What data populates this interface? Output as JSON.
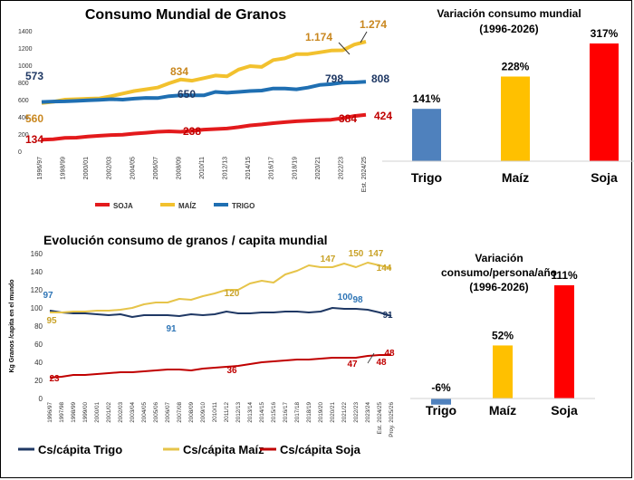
{
  "chart_data": [
    {
      "type": "line",
      "title": "Consumo Mundial de Granos",
      "x": [
        "1996/97",
        "1997/98",
        "1998/99",
        "1999/00",
        "2000/01",
        "2001/02",
        "2002/03",
        "2003/04",
        "2004/05",
        "2005/06",
        "2006/07",
        "2007/08",
        "2008/09",
        "2009/10",
        "2010/11",
        "2011/12",
        "2012/13",
        "2013/14",
        "2014/15",
        "2015/16",
        "2016/17",
        "2017/18",
        "2018/19",
        "2019/20",
        "2020/21",
        "2021/22",
        "2022/23",
        "2023/24",
        "Est. 2024/25"
      ],
      "x_tick_labels": [
        "1996/97",
        "1998/99",
        "2000/01",
        "2002/03",
        "2004/05",
        "2006/07",
        "2008/09",
        "2010/11",
        "2012/13",
        "2014/15",
        "2016/17",
        "2018/19",
        "2020/21",
        "2022/23",
        "Est. 2024/25"
      ],
      "ylim": [
        0,
        1400
      ],
      "y_ticks": [
        "0",
        "200",
        "400",
        "600",
        "800",
        "1000",
        "1200",
        "1400"
      ],
      "series": [
        {
          "name": "SOJA",
          "color": "#e31a1c",
          "values": [
            134,
            140,
            155,
            158,
            170,
            180,
            188,
            192,
            205,
            215,
            226,
            232,
            226,
            238,
            252,
            258,
            264,
            280,
            300,
            312,
            326,
            338,
            348,
            355,
            362,
            366,
            384,
            410,
            424
          ]
        },
        {
          "name": "MAÍZ",
          "color": "#f2c12e",
          "values": [
            560,
            575,
            600,
            605,
            610,
            615,
            640,
            670,
            700,
            720,
            740,
            790,
            834,
            820,
            850,
            880,
            870,
            950,
            990,
            980,
            1060,
            1080,
            1130,
            1130,
            1150,
            1170,
            1174,
            1240,
            1274
          ]
        },
        {
          "name": "TRIGO",
          "color": "#1f6fb2",
          "values": [
            573,
            578,
            580,
            585,
            592,
            598,
            605,
            600,
            612,
            620,
            618,
            640,
            650,
            650,
            650,
            690,
            680,
            690,
            700,
            705,
            730,
            730,
            720,
            740,
            770,
            780,
            798,
            800,
            808
          ]
        }
      ],
      "annotations": [
        "573",
        "560",
        "134",
        "834",
        "650",
        "238",
        "1.174",
        "798",
        "384",
        "1.274",
        "808",
        "424"
      ],
      "legend": "bottom"
    },
    {
      "type": "bar",
      "title": "Variación consumo mundial (1996-2026)",
      "title_lines": [
        "Variación consumo mundial",
        "(1996-2026)"
      ],
      "categories": [
        "Trigo",
        "Maíz",
        "Soja"
      ],
      "values": [
        141,
        228,
        317
      ],
      "labels": [
        "141%",
        "228%",
        "317%"
      ],
      "colors": [
        "#4f81bd",
        "#ffc000",
        "#ff0000"
      ]
    },
    {
      "type": "line",
      "title": "Evolución consumo de granos / capita mundial",
      "ylabel": "Kg Granos /capita en el mundo",
      "x": [
        "1996/97",
        "1997/98",
        "1998/99",
        "1999/00",
        "2000/01",
        "2001/02",
        "2002/03",
        "2003/04",
        "2004/05",
        "2005/06",
        "2006/07",
        "2007/08",
        "2008/09",
        "2009/10",
        "2010/11",
        "2011/12",
        "2012/13",
        "2013/14",
        "2014/15",
        "2015/16",
        "2016/17",
        "2017/18",
        "2018/19",
        "2019/20",
        "2020/21",
        "2021/22",
        "2022/23",
        "2023/24",
        "Est. 2024/25",
        "Proy. 2025/26"
      ],
      "ylim": [
        0,
        160
      ],
      "y_ticks": [
        "0",
        "20",
        "40",
        "60",
        "80",
        "100",
        "120",
        "140",
        "160"
      ],
      "series": [
        {
          "name": "Cs/cápita Trigo",
          "color": "#1f3864",
          "values": [
            97,
            95,
            94,
            94,
            93,
            92,
            93,
            90,
            92,
            92,
            92,
            91,
            93,
            92,
            93,
            96,
            94,
            94,
            95,
            95,
            96,
            96,
            95,
            96,
            100,
            99,
            99,
            98,
            95,
            91
          ]
        },
        {
          "name": "Cs/cápita Maíz",
          "color": "#e6c44a",
          "values": [
            95,
            95,
            96,
            96,
            97,
            97,
            98,
            100,
            104,
            106,
            106,
            110,
            109,
            113,
            116,
            120,
            120,
            127,
            130,
            128,
            137,
            141,
            147,
            145,
            145,
            149,
            145,
            150,
            147,
            144
          ]
        },
        {
          "name": "Cs/cápita Soja",
          "color": "#c00000",
          "values": [
            23,
            24,
            26,
            26,
            27,
            28,
            29,
            29,
            30,
            31,
            32,
            32,
            31,
            33,
            34,
            35,
            36,
            38,
            40,
            41,
            42,
            43,
            43,
            44,
            45,
            45,
            45,
            47,
            48,
            48
          ]
        }
      ],
      "annotations": [
        "97",
        "95",
        "23",
        "91",
        "120",
        "36",
        "147",
        "100",
        "98",
        "150",
        "147",
        "144",
        "91",
        "47",
        "48",
        "48"
      ],
      "legend": "bottom"
    },
    {
      "type": "bar",
      "title": "Variación consumo/persona/año (1996-2026)",
      "title_lines": [
        "Variación",
        "consumo/persona/año",
        "(1996-2026)"
      ],
      "categories": [
        "Trigo",
        "Maíz",
        "Soja"
      ],
      "values": [
        -6,
        52,
        111
      ],
      "labels": [
        "-6%",
        "52%",
        "111%"
      ],
      "colors": [
        "#4f81bd",
        "#ffc000",
        "#ff0000"
      ]
    }
  ]
}
